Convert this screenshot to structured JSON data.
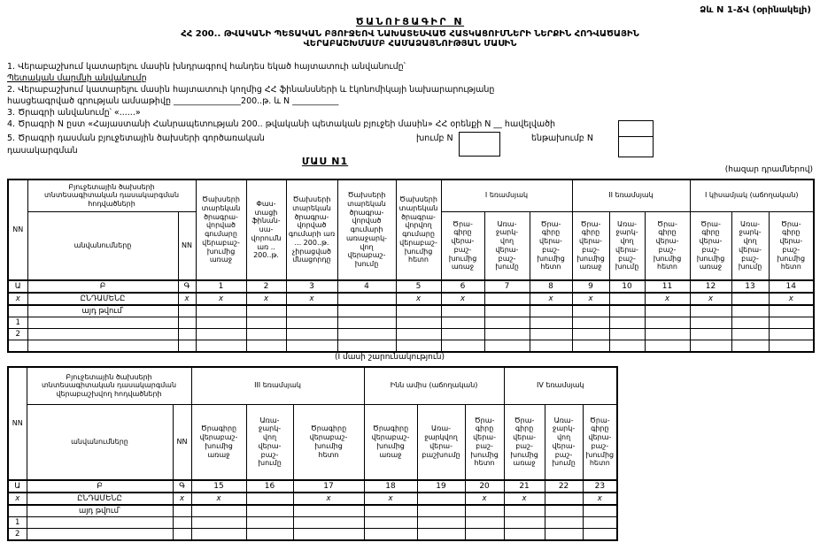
{
  "form_ref": "Ձև N 1-ՃՎ (օրինակելի)",
  "title": "ԾԱՆՈՒՑԱԳԻՐ  N",
  "subtitle1": "ՀՀ 200.. ԹՎԱԿԱՆԻ ՊԵՏԱԿԱՆ ԲՅՈՒՋԵՈՎ ՆԱԽԱՏԵՍՎԱԾ ՀԱՏԿԱՑՈՒՄՆԵՐԻ ՆԵՐՔԻՆ ՀՈԴՎԱԾԱՅԻՆ",
  "subtitle2": "ՎԵՐԱԲԱՇԽՄԱՄԲ ՀԱՄԱՁԱՅՆՈՒԹՅԱՆ ՄԱՍԻՆ",
  "items": {
    "item1": "1. Վերաբաշխում կատարելու մասին խնդրագրով հանդես եկած հայտատուի անվանումը՝",
    "item1_sub": "Պետական մարմնի անվանումը",
    "item2_line1": "2.  Վերաբաշխում կատարելու մասին հայտատուի կողմից ՀՀ ֆինանսների և էկոնոմիկայի նախարարությանը",
    "item2_line2": "հասցեագրված գրության ամսաթիվը ________________200..թ. և N ___________",
    "item3": "3. Ծրագրի անվանումը՝ «......»",
    "item4": "4. Ծրագրի N ըստ «Հայաստանի Հանրապետության 200.. թվականի պետական բյուջեի մասին» ՀՀ օրենքի N __ հավելվածի",
    "item5_line1": "5. Ծրագրի դասման բյուջետային ծախսերի գործառական",
    "item5_line2": "դասակարգման",
    "group_label": "խումբ N",
    "subgroup_label": "ենթախումբ N"
  },
  "part1": {
    "heading": "ՄԱՍ  N1",
    "units": "(հազար դրամներով)"
  },
  "continuation": "(I մասի շարունակություն)",
  "table1": {
    "header": {
      "nn": "NN",
      "name_top": "Բյուջետային ծախսերի\nտնտեսագիտական դասակարգման\nհոդվածների",
      "name_bottom": "անվանումները",
      "nn2": "NN",
      "col1": "Ծախսերի\nտարեկան\nծրագրա-\nվորված\nգումարը\nվերաբաշ-\nխումից\nառաջ",
      "col2": "Փաս-\nտացի\nֆինան-\nսա-\nվորումն\nառ ..\n200..թ.",
      "col3": "Ծախսերի\nտարեկան\nծրագրա-\nվորված\nգումարի առ\n... 200..թ.\nչիրացված\nմնացորդը",
      "col4": "Ծախսերի\nտարեկան\nծրագրա-\nվորված\nգումարի\nառաջարկ-\nվող\nվերաբաշ-\nխումը",
      "col5": "Ծախսերի\nտարեկան\nծրագրա-\nվորվող\nգումարը\nվերաբաշ-\nխումից\nհետո",
      "q1": "I եռամսյակ",
      "q2": "II եռամսյակ",
      "h1": "I կիսամյակ (աճողական)",
      "sub_before": "Ծրա-\nգիրը\nվերա-\nբաշ-\nխումից\nառաջ",
      "sub_proposed": "Առա-\nջարկ-\nվող\nվերա-\nբաշ-\nխումը",
      "sub_after": "Ծրա-\nգիրը\nվերա-\nբաշ-\nխումից\nհետո"
    },
    "column_keys": [
      "Ա",
      "Բ",
      "Գ",
      "1",
      "2",
      "3",
      "4",
      "5",
      "6",
      "7",
      "8",
      "9",
      "10",
      "11",
      "12",
      "13",
      "14"
    ],
    "rows": [
      [
        "x",
        "ԸՆԴԱՄԵՆԸ",
        "x",
        "x",
        "x",
        "x",
        "",
        "x",
        "x",
        "",
        "x",
        "x",
        "",
        "x",
        "x",
        "",
        "x"
      ],
      [
        "",
        "այդ թվում՝",
        "",
        "",
        "",
        "",
        "",
        "",
        "",
        "",
        "",
        "",
        "",
        "",
        "",
        "",
        ""
      ],
      [
        "1",
        "",
        "",
        "",
        "",
        "",
        "",
        "",
        "",
        "",
        "",
        "",
        "",
        "",
        "",
        "",
        ""
      ],
      [
        "2",
        "",
        "",
        "",
        "",
        "",
        "",
        "",
        "",
        "",
        "",
        "",
        "",
        "",
        "",
        "",
        ""
      ],
      [
        "",
        "",
        "",
        "",
        "",
        "",
        "",
        "",
        "",
        "",
        "",
        "",
        "",
        "",
        "",
        "",
        ""
      ]
    ]
  },
  "table2": {
    "header": {
      "nn": "NN",
      "name_top": "Բյուջետային ծախսերի\nտնտեսագիտական դասակարգման\nվերաբաշխվող հոդվածների",
      "name_bottom": "անվանումները",
      "nn2": "NN",
      "q3": "III եռամսյակ",
      "nine": "Ինն ամիս (աճողական)",
      "q4": "IV եռամսյակ",
      "c15": "Ծրագիրը\nվերաբաշ-\nխումից\nառաջ",
      "c16": "Առա-\nջարկ-\nվող\nվերա-\nբաշ-\nխումը",
      "c17": "Ծրագիրը\nվերաբաշ-\nխումից\nհետո",
      "c18": "Ծրագիրը\nվերաբաշ-\nխումից\nառաջ",
      "c19": "Առա-\nջարկվող\nվերա-\nբաշխումը",
      "c20": "Ծրա-\nգիրը\nվերա-\nբաշ-\nխումից\nհետո",
      "c21": "Ծրա-\nգիրը\nվերա-\nբաշ-\nխումից\nառաջ",
      "c22": "Առա-\nջարկ-\nվող\nվերա-\nբաշ-\nխումը",
      "c23": "Ծրա-\nգիրը\nվերա-\nբաշ-\nխումից\nհետո"
    },
    "column_keys": [
      "Ա",
      "Բ",
      "Գ",
      "15",
      "16",
      "17",
      "18",
      "19",
      "20",
      "21",
      "22",
      "23"
    ],
    "rows": [
      [
        "x",
        "ԸՆԴԱՄԵՆԸ",
        "x",
        "x",
        "",
        "x",
        "x",
        "",
        "x",
        "x",
        "",
        "x"
      ],
      [
        "",
        "այդ թվում՝",
        "",
        "",
        "",
        "",
        "",
        "",
        "",
        "",
        "",
        ""
      ],
      [
        "1",
        "",
        "",
        "",
        "",
        "",
        "",
        "",
        "",
        "",
        "",
        ""
      ],
      [
        "2",
        "",
        "",
        "",
        "",
        "",
        "",
        "",
        "",
        "",
        "",
        ""
      ]
    ]
  }
}
